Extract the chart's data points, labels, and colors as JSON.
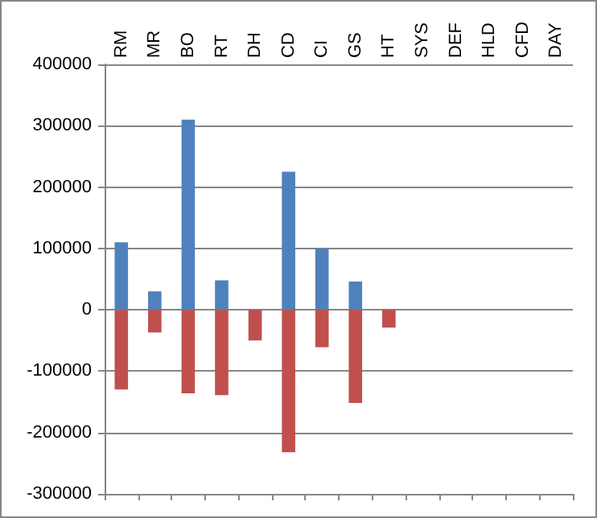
{
  "chart_data": {
    "type": "bar",
    "stacked": true,
    "categories": [
      "RM",
      "MR",
      "BO",
      "RT",
      "DH",
      "CD",
      "CI",
      "GS",
      "HT",
      "SYS",
      "DEF",
      "HLD",
      "CFD",
      "DAY"
    ],
    "series": [
      {
        "color": "#4f81bd",
        "values": [
          110000,
          30000,
          310000,
          48000,
          null,
          225000,
          100000,
          46000,
          null,
          null,
          null,
          null,
          null,
          null
        ]
      },
      {
        "color": "#c0504d",
        "values": [
          -130000,
          -37000,
          -136000,
          -139000,
          -50000,
          -232000,
          -61000,
          -152000,
          -29000,
          null,
          null,
          null,
          null,
          null
        ]
      }
    ],
    "ylim": [
      -300000,
      400000
    ],
    "yticks": [
      -300000,
      -200000,
      -100000,
      0,
      100000,
      200000,
      300000,
      400000
    ],
    "grid": "y"
  }
}
